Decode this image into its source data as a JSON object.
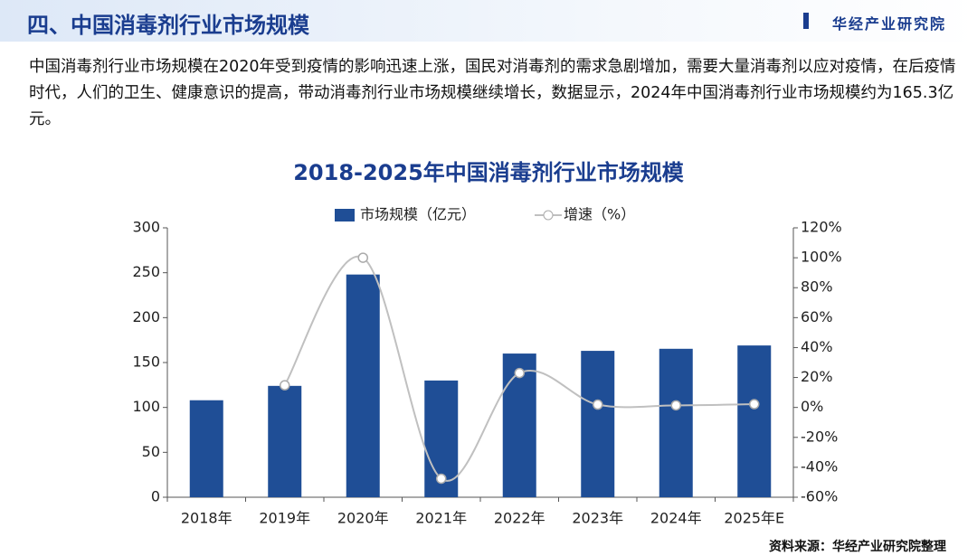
{
  "header": {
    "title": "四、中国消毒剂行业市场规模",
    "logo": "华经产业研究院"
  },
  "paragraph": "中国消毒剂行业市场规模在2020年受到疫情的影响迅速上涨，国民对消毒剂的需求急剧增加，需要大量消毒剂以应对疫情，在后疫情时代，人们的卫生、健康意识的提高，带动消毒剂行业市场规模继续增长，数据显示，2024年中国消毒剂行业市场规模约为165.3亿元。",
  "source": "资料来源：华经产业研究院整理",
  "chart_data": {
    "type": "bar",
    "title": "2018-2025年中国消毒剂行业市场规模",
    "categories": [
      "2018年",
      "2019年",
      "2020年",
      "2021年",
      "2022年",
      "2023年",
      "2024年",
      "2025年E"
    ],
    "series": [
      {
        "name": "市场规模（亿元）",
        "type": "bar",
        "color": "#1f4e96",
        "values": [
          108,
          124,
          248,
          130,
          160,
          163,
          165.3,
          169
        ]
      },
      {
        "name": "增速（%）",
        "type": "line",
        "axis": "y2",
        "color": "#c0c0c0",
        "values": [
          null,
          14.8,
          100,
          -47.6,
          23,
          1.9,
          1.4,
          2.2
        ]
      }
    ],
    "ylim": [
      0,
      300
    ],
    "yticks": [
      0,
      50,
      100,
      150,
      200,
      250,
      300
    ],
    "y2lim": [
      -60,
      120
    ],
    "y2ticks": [
      {
        "value": -60,
        "label": "-60%"
      },
      {
        "value": -40,
        "label": "-40%"
      },
      {
        "value": -20,
        "label": "-20%"
      },
      {
        "value": 0,
        "label": "0%"
      },
      {
        "value": 20,
        "label": "20%"
      },
      {
        "value": 40,
        "label": "40%"
      },
      {
        "value": 60,
        "label": "60%"
      },
      {
        "value": 80,
        "label": "80%"
      },
      {
        "value": 100,
        "label": "100%"
      },
      {
        "value": 120,
        "label": "120%"
      }
    ],
    "legend": "top"
  }
}
